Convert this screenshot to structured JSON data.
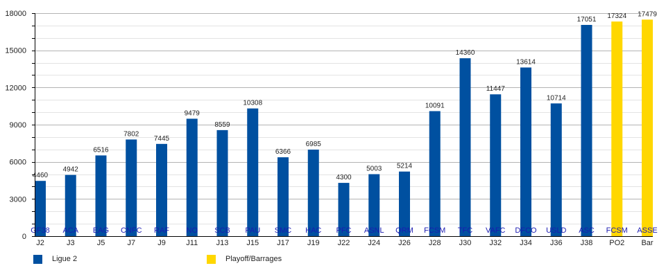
{
  "chart_data": {
    "type": "bar",
    "title": "",
    "xlabel": "",
    "ylabel": "",
    "ylim": [
      0,
      18000
    ],
    "yticks": [
      0,
      3000,
      6000,
      9000,
      12000,
      15000,
      18000
    ],
    "yminor_step": 1000,
    "grid": true,
    "legend_position": "bottom-left",
    "categories": [
      "J2",
      "J3",
      "J5",
      "J7",
      "J9",
      "J11",
      "J13",
      "J15",
      "J17",
      "J19",
      "J22",
      "J24",
      "J26",
      "J28",
      "J30",
      "J32",
      "J34",
      "J36",
      "J38",
      "PO2",
      "Bar"
    ],
    "opponents": [
      "GF38",
      "ACA",
      "EAG",
      "CNFC",
      "RAF",
      "NO",
      "SCB",
      "PAU",
      "SMC",
      "HAC",
      "PFC",
      "ASNL",
      "QRM",
      "FCSM",
      "TFC",
      "VAFC",
      "DFCO",
      "USLD",
      "ASC",
      "FCSM",
      "ASSE"
    ],
    "values": [
      4460,
      4942,
      6516,
      7802,
      7445,
      9479,
      8559,
      10308,
      6366,
      6985,
      4300,
      5003,
      5214,
      10091,
      14360,
      11447,
      13614,
      10714,
      17051,
      17324,
      17479
    ],
    "series_index": [
      0,
      0,
      0,
      0,
      0,
      0,
      0,
      0,
      0,
      0,
      0,
      0,
      0,
      0,
      0,
      0,
      0,
      0,
      0,
      1,
      1
    ],
    "series": [
      {
        "name": "Ligue 2",
        "color": "#0050a0"
      },
      {
        "name": "Playoff/Barrages",
        "color": "#ffd700"
      }
    ],
    "opponent_label_color": "#1a1ab0"
  }
}
